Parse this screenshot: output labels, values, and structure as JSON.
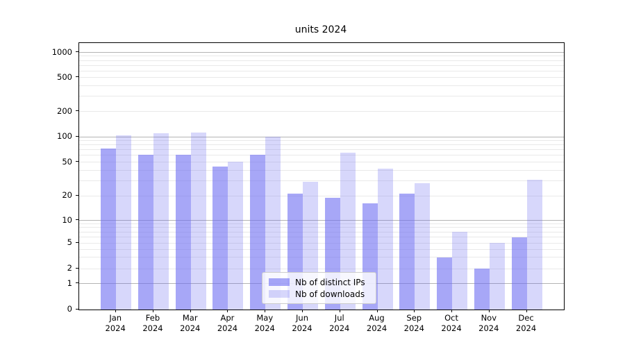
{
  "title": "units 2024",
  "colors": {
    "bar_distinct_ips": "rgba(108,108,242,0.6)",
    "bar_downloads": "rgba(108,108,242,0.27)",
    "grid_major": "#b3b3b3",
    "grid_minor": "#e9e9e9",
    "axis": "#000000",
    "legend_border": "#cccccc"
  },
  "legend": {
    "position": "lower center",
    "items": [
      {
        "label": "Nb of distinct IPs",
        "swatch": "bar_distinct_ips"
      },
      {
        "label": "Nb of downloads",
        "swatch": "bar_downloads"
      }
    ]
  },
  "chart_data": {
    "type": "bar",
    "title": "units 2024",
    "categories": [
      "Jan 2024",
      "Feb 2024",
      "Mar 2024",
      "Apr 2024",
      "May 2024",
      "Jun 2024",
      "Jul 2024",
      "Aug 2024",
      "Sep 2024",
      "Oct 2024",
      "Nov 2024",
      "Dec 2024"
    ],
    "series": [
      {
        "name": "Nb of distinct IPs",
        "values": [
          72,
          61,
          61,
          44,
          61,
          21,
          19,
          16,
          21,
          3,
          2,
          6
        ]
      },
      {
        "name": "Nb of downloads",
        "values": [
          103,
          111,
          113,
          51,
          100,
          29,
          65,
          42,
          28,
          7,
          5,
          31
        ]
      }
    ],
    "xlabel": "",
    "ylabel": "",
    "yscale": "log-like (1-2-5 labeled ticks, linear segment from 0 to 1)",
    "yticks": [
      1000,
      500,
      200,
      100,
      50,
      20,
      10,
      5,
      2,
      1,
      0
    ],
    "ylim": [
      0,
      1300
    ],
    "grid": true,
    "grid_major_at": [
      1,
      10,
      100,
      1000
    ],
    "grid_minor_at": [
      2,
      3,
      4,
      5,
      6,
      7,
      8,
      9,
      20,
      30,
      40,
      50,
      60,
      70,
      80,
      90,
      200,
      300,
      400,
      500,
      600,
      700,
      800,
      900
    ],
    "legend_position": "lower center"
  }
}
